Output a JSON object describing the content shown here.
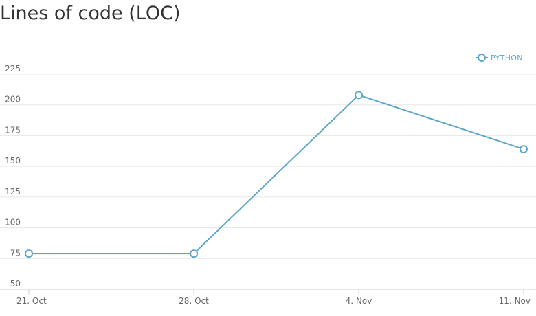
{
  "title": "Lines of code (LOC)",
  "chart_data": {
    "type": "line",
    "title": "Lines of code (LOC)",
    "xlabel": "",
    "ylabel": "",
    "categories": [
      "21. Oct",
      "28. Oct",
      "4. Nov",
      "11. Nov"
    ],
    "ylim": [
      50,
      225
    ],
    "yticks": [
      50,
      75,
      100,
      125,
      150,
      175,
      200,
      225
    ],
    "grid": true,
    "legend_position": "top-right",
    "series": [
      {
        "name": "PYTHON",
        "color": "#5ba7c9",
        "values": [
          79,
          79,
          208,
          164
        ]
      }
    ]
  }
}
